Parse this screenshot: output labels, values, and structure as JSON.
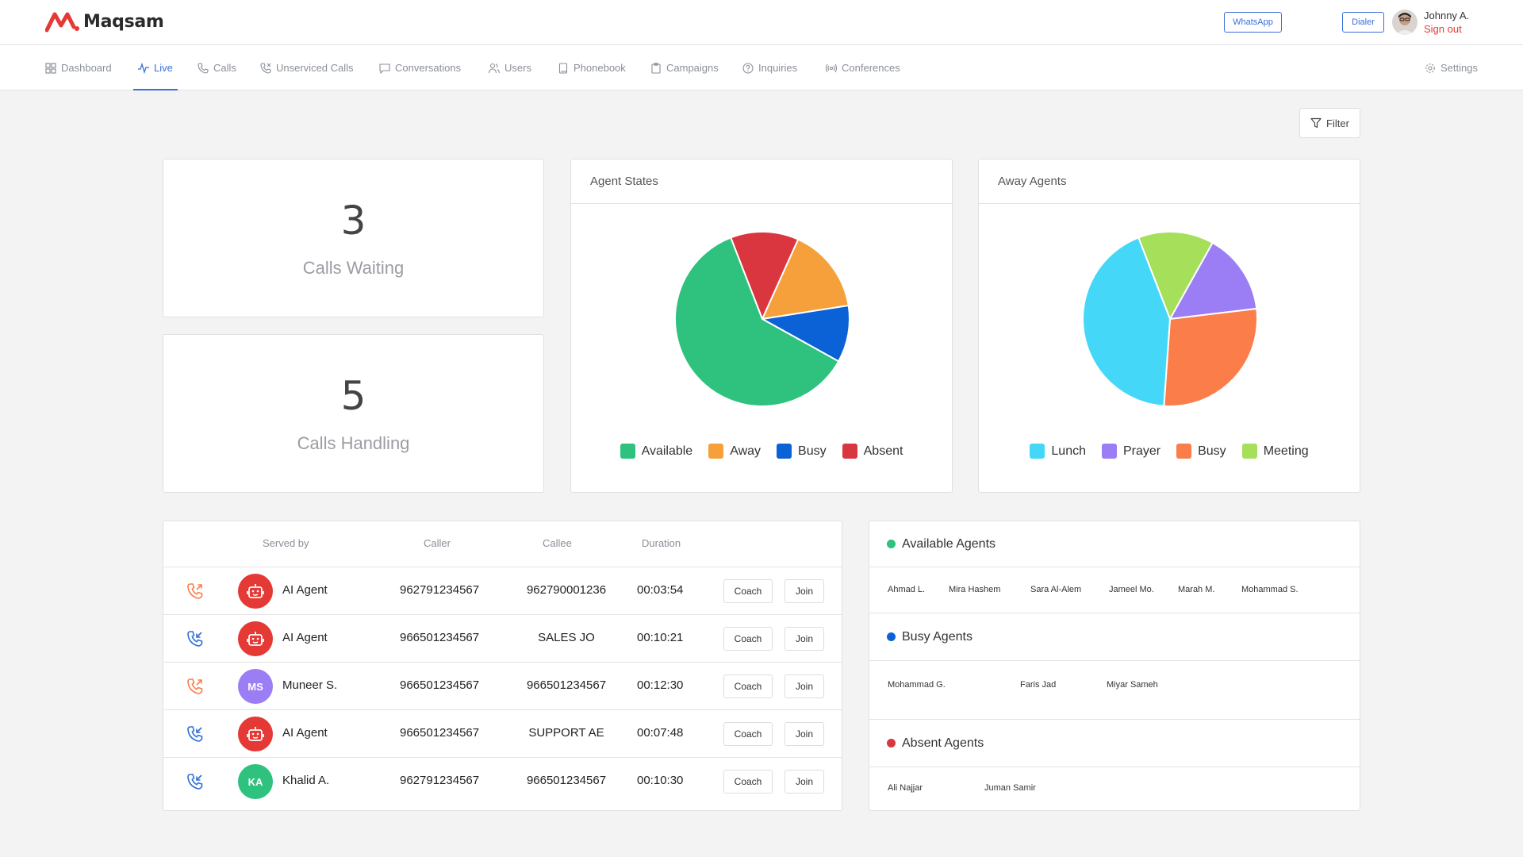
{
  "header": {
    "logo_text": "Maqsam",
    "whatsapp_label": "WhatsApp",
    "dialer_label": "Dialer",
    "user_name": "Johnny A.",
    "sign_out_label": "Sign out"
  },
  "nav": {
    "items": [
      {
        "label": "Dashboard",
        "icon": "grid-icon"
      },
      {
        "label": "Live",
        "icon": "activity-icon",
        "active": true
      },
      {
        "label": "Calls",
        "icon": "phone-icon"
      },
      {
        "label": "Unserviced Calls",
        "icon": "phone-missed-icon"
      },
      {
        "label": "Conversations",
        "icon": "chat-icon"
      },
      {
        "label": "Users",
        "icon": "users-icon"
      },
      {
        "label": "Phonebook",
        "icon": "book-icon"
      },
      {
        "label": "Campaigns",
        "icon": "clipboard-icon"
      },
      {
        "label": "Inquiries",
        "icon": "help-icon"
      },
      {
        "label": "Conferences",
        "icon": "broadcast-icon"
      }
    ],
    "settings_label": "Settings"
  },
  "filter_label": "Filter",
  "stats": {
    "calls_waiting": {
      "value": "3",
      "label": "Calls Waiting"
    },
    "calls_handling": {
      "value": "5",
      "label": "Calls Handling"
    }
  },
  "chart_data": [
    {
      "type": "pie",
      "title": "Agent States",
      "categories": [
        "Available",
        "Away",
        "Busy",
        "Absent"
      ],
      "values": [
        58,
        15,
        10,
        12
      ],
      "colors": [
        "#2ec27e",
        "#f5a03a",
        "#0a62d6",
        "#d93640"
      ],
      "legend": "bottom"
    },
    {
      "type": "pie",
      "title": "Away Agents",
      "categories": [
        "Lunch",
        "Prayer",
        "Busy",
        "Meeting"
      ],
      "values": [
        43,
        15,
        28,
        14
      ],
      "colors": [
        "#45d7f7",
        "#9b7ef5",
        "#fb7d4a",
        "#a6df5a"
      ],
      "legend": "bottom"
    }
  ],
  "calls_table": {
    "headers": {
      "served_by": "Served by",
      "caller": "Caller",
      "callee": "Callee",
      "duration": "Duration"
    },
    "coach_label": "Coach",
    "join_label": "Join",
    "rows": [
      {
        "direction": "outgoing",
        "avatar_type": "bot",
        "initials": "",
        "avatar_color": "#e53935",
        "name": "AI Agent",
        "caller": "962791234567",
        "callee": "962790001236",
        "duration": "00:03:54"
      },
      {
        "direction": "incoming",
        "avatar_type": "bot",
        "initials": "",
        "avatar_color": "#e53935",
        "name": "AI Agent",
        "caller": "966501234567",
        "callee": "SALES JO",
        "duration": "00:10:21"
      },
      {
        "direction": "outgoing",
        "avatar_type": "initials",
        "initials": "MS",
        "avatar_color": "#9b7ef5",
        "name": "Muneer S.",
        "caller": "966501234567",
        "callee": "966501234567",
        "duration": "00:12:30"
      },
      {
        "direction": "incoming",
        "avatar_type": "bot",
        "initials": "",
        "avatar_color": "#e53935",
        "name": "AI Agent",
        "caller": "966501234567",
        "callee": "SUPPORT AE",
        "duration": "00:07:48"
      },
      {
        "direction": "incoming",
        "avatar_type": "initials",
        "initials": "KA",
        "avatar_color": "#2ec27e",
        "name": "Khalid A.",
        "caller": "962791234567",
        "callee": "966501234567",
        "duration": "00:10:30"
      }
    ]
  },
  "agents": {
    "available": {
      "title": "Available Agents",
      "color": "#2ec27e",
      "names": [
        "Ahmad L.",
        "Mira Hashem",
        "Sara Al-Alem",
        "Jameel Mo.",
        "Marah M.",
        "Mohammad S."
      ]
    },
    "busy": {
      "title": "Busy Agents",
      "color": "#0a62d6",
      "names": [
        "Mohammad G.",
        "Faris Jad",
        "Miyar Sameh"
      ]
    },
    "absent": {
      "title": "Absent Agents",
      "color": "#d93640",
      "names": [
        "Ali Najjar",
        "Juman Samir"
      ]
    }
  }
}
